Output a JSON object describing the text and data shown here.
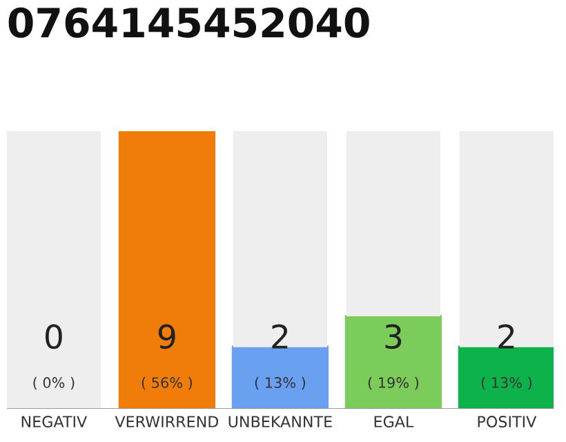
{
  "chart_data": {
    "type": "bar",
    "title": "0764145452040",
    "stacked": true,
    "categories": [
      "NEGATIV",
      "VERWIRREND",
      "UNBEKANNTE",
      "EGAL",
      "POSITIV"
    ],
    "series": [
      {
        "colors": [
          "#555555",
          "#f07d0a",
          "#6aa0f0",
          "#7ccc5c",
          "#0db34a"
        ],
        "values": [
          0,
          9,
          2,
          3,
          2
        ],
        "value_labels": [
          "0",
          "9",
          "2",
          "3",
          "2"
        ]
      },
      {
        "color": "#eeeeee",
        "values": [
          9,
          0,
          7,
          6,
          7
        ]
      }
    ],
    "ylim": [
      0,
      9
    ],
    "tick_labels": "x",
    "grid": false,
    "annotations": [
      "( 0% )",
      "( 56% )",
      "( 13% )",
      "( 19% )",
      "( 13% )"
    ]
  }
}
